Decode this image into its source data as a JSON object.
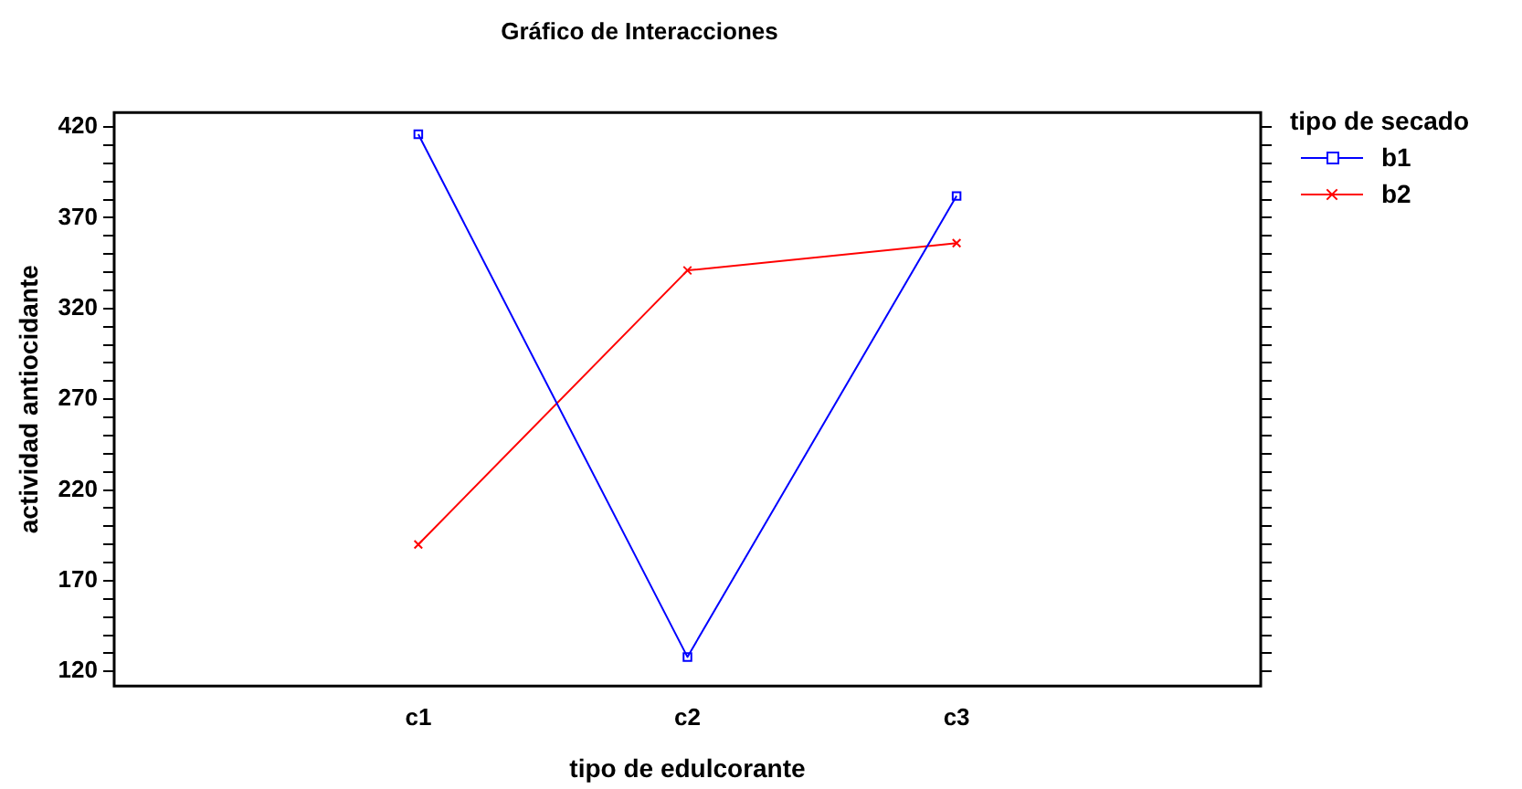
{
  "chart_data": {
    "type": "line",
    "title": "Gráfico de Interacciones",
    "xlabel": "tipo de edulcorante",
    "ylabel": "actividad antiocidante",
    "legend_title": "tipo de secado",
    "categories": [
      "c1",
      "c2",
      "c3"
    ],
    "series": [
      {
        "name": "b1",
        "color": "#0000ff",
        "marker": "square",
        "values": [
          416,
          128,
          382
        ]
      },
      {
        "name": "b2",
        "color": "#ff0000",
        "marker": "cross",
        "values": [
          190,
          341,
          356
        ]
      }
    ],
    "ylim": [
      112,
      428
    ],
    "yticks": [
      {
        "value": 120,
        "label": "120"
      },
      {
        "value": 130,
        "label": null
      },
      {
        "value": 140,
        "label": null
      },
      {
        "value": 150,
        "label": null
      },
      {
        "value": 160,
        "label": null
      },
      {
        "value": 170,
        "label": "170"
      },
      {
        "value": 180,
        "label": null
      },
      {
        "value": 190,
        "label": null
      },
      {
        "value": 200,
        "label": null
      },
      {
        "value": 210,
        "label": null
      },
      {
        "value": 220,
        "label": "220"
      },
      {
        "value": 230,
        "label": null
      },
      {
        "value": 240,
        "label": null
      },
      {
        "value": 250,
        "label": null
      },
      {
        "value": 260,
        "label": null
      },
      {
        "value": 270,
        "label": "270"
      },
      {
        "value": 280,
        "label": null
      },
      {
        "value": 290,
        "label": null
      },
      {
        "value": 300,
        "label": null
      },
      {
        "value": 310,
        "label": null
      },
      {
        "value": 320,
        "label": "320"
      },
      {
        "value": 330,
        "label": null
      },
      {
        "value": 340,
        "label": null
      },
      {
        "value": 350,
        "label": null
      },
      {
        "value": 360,
        "label": null
      },
      {
        "value": 370,
        "label": "370"
      },
      {
        "value": 380,
        "label": null
      },
      {
        "value": 390,
        "label": null
      },
      {
        "value": 400,
        "label": null
      },
      {
        "value": 410,
        "label": null
      },
      {
        "value": 420,
        "label": "420"
      }
    ],
    "grid": false,
    "legend": "top right",
    "line_style": "solid"
  }
}
